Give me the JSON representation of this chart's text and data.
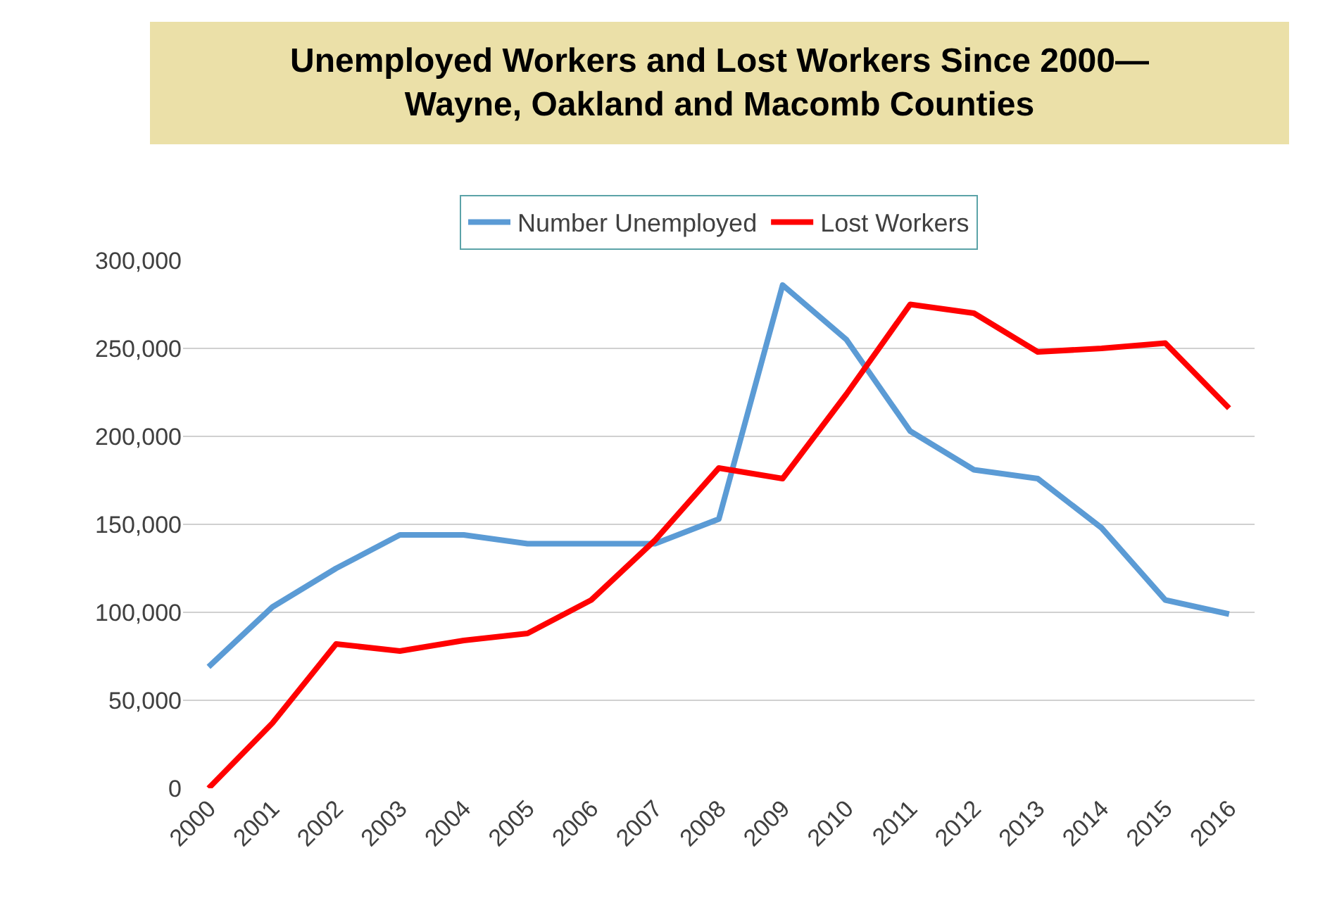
{
  "chart_data": {
    "type": "line",
    "title": "Unemployed Workers and Lost Workers Since 2000—\nWayne, Oakland and Macomb Counties",
    "categories": [
      "2000",
      "2001",
      "2002",
      "2003",
      "2004",
      "2005",
      "2006",
      "2007",
      "2008",
      "2009",
      "2010",
      "2011",
      "2012",
      "2013",
      "2014",
      "2015",
      "2016"
    ],
    "series": [
      {
        "name": "Number Unemployed",
        "color": "#5b9bd5",
        "values": [
          69000,
          103000,
          125000,
          144000,
          144000,
          139000,
          139000,
          139000,
          153000,
          286000,
          255000,
          203000,
          181000,
          176000,
          148000,
          107000,
          99000
        ]
      },
      {
        "name": "Lost Workers",
        "color": "#ff0000",
        "values": [
          0,
          37000,
          82000,
          78000,
          84000,
          88000,
          107000,
          141000,
          182000,
          176000,
          224000,
          275000,
          270000,
          248000,
          250000,
          253000,
          216000
        ]
      }
    ],
    "ylim": [
      0,
      300000
    ],
    "yticks": [
      {
        "value": 0,
        "label": "0"
      },
      {
        "value": 50000,
        "label": "50,000"
      },
      {
        "value": 100000,
        "label": "100,000"
      },
      {
        "value": 150000,
        "label": "150,000"
      },
      {
        "value": 200000,
        "label": "200,000"
      },
      {
        "value": 250000,
        "label": "250,000"
      },
      {
        "value": 300000,
        "label": "300,000"
      }
    ],
    "grid": "y",
    "legend": "top",
    "marker": "none",
    "line_style": "solid"
  }
}
